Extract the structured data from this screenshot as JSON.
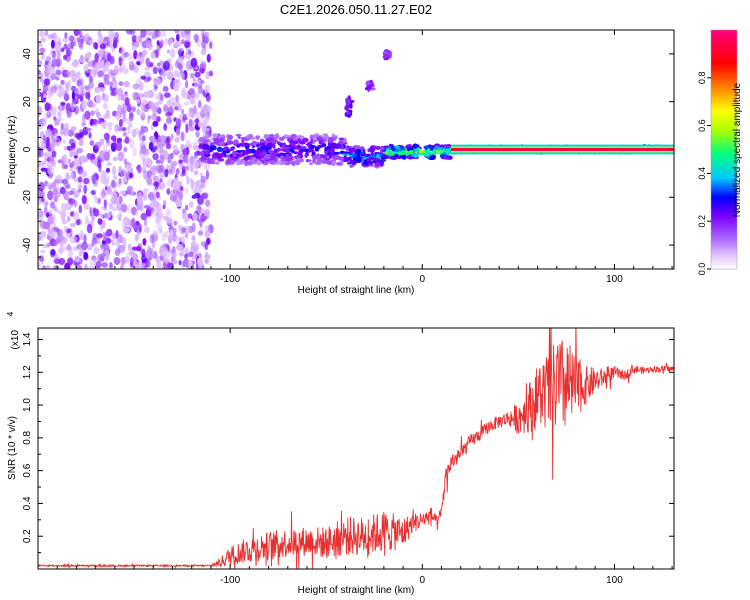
{
  "figure": {
    "title": "C2E1.2026.050.11.27.E02"
  },
  "chart_data": [
    {
      "type": "heatmap",
      "name": "spectrogram",
      "title": "C2E1.2026.050.11.27.E02",
      "xlabel": "Height of straight line (km)",
      "ylabel": "Frequency (Hz)",
      "xlim": [
        -200,
        131
      ],
      "ylim": [
        -50,
        50
      ],
      "xticks": [
        -100,
        0,
        100
      ],
      "yticks": [
        -40,
        -20,
        0,
        20,
        40
      ],
      "noise_region_x": [
        -200,
        -110
      ],
      "signal_band": [
        {
          "x_start": -115,
          "x_end": -40,
          "freq_center": 0,
          "freq_halfwidth": 6,
          "amplitude": 0.3
        },
        {
          "x_start": -40,
          "x_end": -20,
          "freq_center": -3,
          "freq_halfwidth": 4,
          "amplitude": 0.4
        },
        {
          "x_start": -20,
          "x_end": 15,
          "freq_center": -1,
          "freq_halfwidth": 2.5,
          "amplitude": 0.6
        },
        {
          "x_start": 15,
          "x_end": 131,
          "freq_center": 0,
          "freq_halfwidth": 1.2,
          "amplitude": 0.95
        }
      ],
      "sidebands": [
        {
          "x": -38,
          "freq_low": 14,
          "freq_high": 22,
          "amplitude": 0.25
        },
        {
          "x": -27,
          "freq_low": 25,
          "freq_high": 28,
          "amplitude": 0.2
        },
        {
          "x": -18,
          "freq_low": 38,
          "freq_high": 41,
          "amplitude": 0.2
        }
      ],
      "colorbar": {
        "label": "Normalized spectral amplitude",
        "range": [
          0,
          1
        ],
        "ticks": [
          0.0,
          0.2,
          0.4,
          0.6,
          0.8
        ],
        "tick_labels": [
          "0.0",
          "0.2",
          "0.4",
          "0.6",
          "0.8"
        ],
        "colors": [
          "#ffffff",
          "#e8ccff",
          "#b070ff",
          "#7a00ff",
          "#0000ff",
          "#00c8ff",
          "#00ff80",
          "#aaff00",
          "#ffff00",
          "#ff8000",
          "#ff0000",
          "#ff0080"
        ]
      }
    },
    {
      "type": "line",
      "name": "snr",
      "xlabel": "Height of straight line (km)",
      "ylabel": "SNR (10 * v/v)",
      "y_scale_label": "(x10",
      "y_scale_exp": "4",
      "xlim": [
        -200,
        131
      ],
      "ylim": [
        0,
        1.47
      ],
      "xticks": [
        -100,
        0,
        100
      ],
      "yticks": [
        0.2,
        0.4,
        0.6,
        0.8,
        1.0,
        1.2,
        1.4
      ],
      "ytick_labels": [
        "0.2",
        "0.4",
        "0.6",
        "0.8",
        "1.0",
        "1.2",
        "1.4"
      ],
      "color": "#e83030",
      "x": [
        -200,
        -150,
        -110,
        -105,
        -100,
        -90,
        -80,
        -70,
        -60,
        -50,
        -40,
        -30,
        -20,
        -10,
        -5,
        0,
        5,
        8,
        10,
        12,
        15,
        20,
        25,
        30,
        35,
        40,
        45,
        50,
        55,
        60,
        65,
        70,
        75,
        80,
        85,
        90,
        95,
        100,
        105,
        110,
        115,
        120,
        125,
        131
      ],
      "y": [
        0.02,
        0.02,
        0.02,
        0.04,
        0.08,
        0.12,
        0.14,
        0.16,
        0.17,
        0.16,
        0.2,
        0.2,
        0.23,
        0.22,
        0.28,
        0.3,
        0.33,
        0.27,
        0.35,
        0.55,
        0.65,
        0.7,
        0.78,
        0.82,
        0.87,
        0.9,
        0.92,
        0.92,
        0.98,
        1.05,
        1.08,
        1.1,
        1.12,
        1.1,
        1.12,
        1.15,
        1.17,
        1.2,
        1.18,
        1.22,
        1.21,
        1.22,
        1.22,
        1.22
      ],
      "noise_amplitude": [
        0.005,
        0.005,
        0.005,
        0.03,
        0.06,
        0.08,
        0.09,
        0.09,
        0.09,
        0.1,
        0.12,
        0.12,
        0.13,
        0.1,
        0.06,
        0.05,
        0.05,
        0.04,
        0.06,
        0.06,
        0.05,
        0.05,
        0.04,
        0.04,
        0.04,
        0.04,
        0.05,
        0.1,
        0.15,
        0.2,
        0.25,
        0.3,
        0.3,
        0.2,
        0.12,
        0.08,
        0.05,
        0.04,
        0.03,
        0.03,
        0.02,
        0.02,
        0.02,
        0.02
      ]
    }
  ]
}
